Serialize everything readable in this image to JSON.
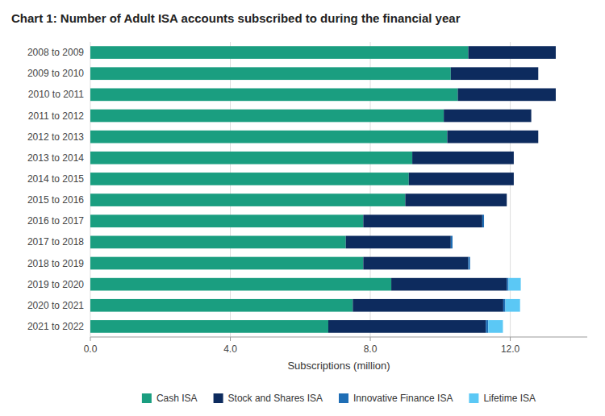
{
  "chart_data": {
    "type": "bar",
    "orientation": "horizontal",
    "stacked": true,
    "title": "Chart 1: Number of Adult ISA accounts subscribed to during the financial year",
    "xlabel": "Subscriptions (million)",
    "categories": [
      "2008 to 2009",
      "2009 to 2010",
      "2010 to 2011",
      "2011 to 2012",
      "2012 to 2013",
      "2013 to 2014",
      "2014 to 2015",
      "2015 to 2016",
      "2016 to 2017",
      "2017 to 2018",
      "2018 to 2019",
      "2019 to 2020",
      "2020 to 2021",
      "2021 to 2022"
    ],
    "series": [
      {
        "name": "Cash ISA",
        "color": "#1a9e80",
        "values": [
          10.8,
          10.3,
          10.5,
          10.1,
          10.2,
          9.2,
          9.1,
          9.0,
          7.8,
          7.3,
          7.8,
          8.6,
          7.5,
          6.8
        ]
      },
      {
        "name": "Stock and Shares ISA",
        "color": "#0d2b5e",
        "values": [
          2.5,
          2.5,
          2.8,
          2.5,
          2.6,
          2.9,
          3.0,
          2.9,
          3.4,
          3.0,
          3.0,
          3.3,
          4.3,
          4.5
        ]
      },
      {
        "name": "Innovative Finance ISA",
        "color": "#1f6eb5",
        "values": [
          0.0,
          0.0,
          0.0,
          0.0,
          0.0,
          0.0,
          0.0,
          0.0,
          0.05,
          0.05,
          0.05,
          0.05,
          0.06,
          0.07
        ]
      },
      {
        "name": "Lifetime ISA",
        "color": "#5bc8f5",
        "values": [
          0.0,
          0.0,
          0.0,
          0.0,
          0.0,
          0.0,
          0.0,
          0.0,
          0.0,
          0.0,
          0.0,
          0.35,
          0.42,
          0.42
        ]
      }
    ],
    "xlim": [
      0,
      14.2
    ],
    "xticks": [
      {
        "value": 0,
        "label": "0.0"
      },
      {
        "value": 4,
        "label": "4.0"
      },
      {
        "value": 8,
        "label": "8.0"
      },
      {
        "value": 12,
        "label": "12.0"
      }
    ],
    "grid": true,
    "legend": "bottom"
  }
}
